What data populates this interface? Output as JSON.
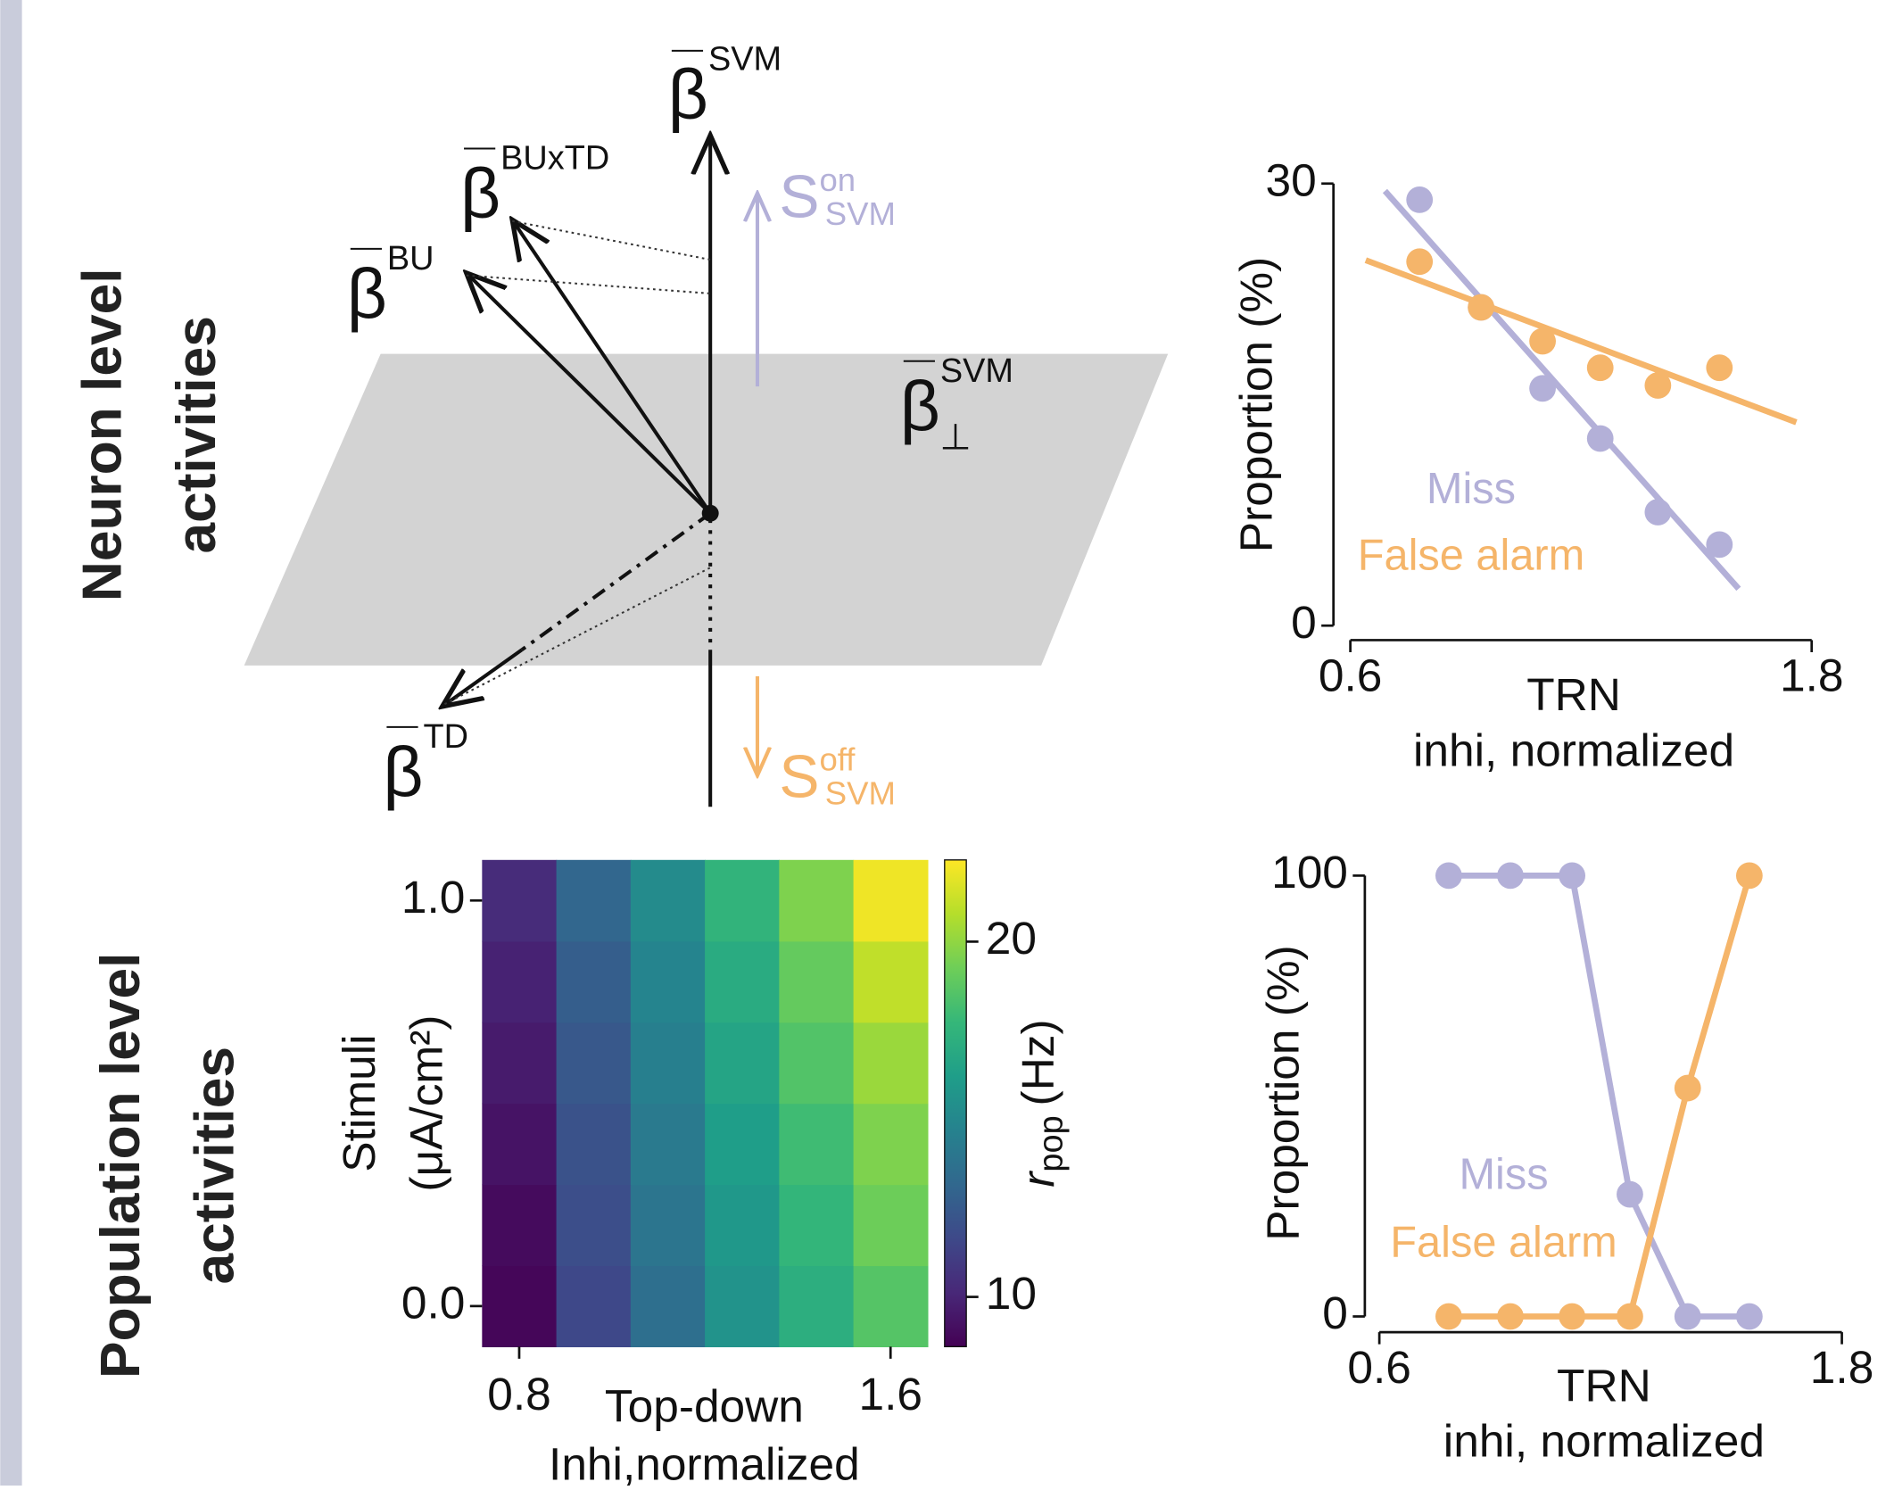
{
  "row_labels": [
    [
      "Neuron level",
      "activities"
    ],
    [
      "Population level",
      "activities"
    ]
  ],
  "diagram": {
    "vectors": [
      {
        "symbol": "β",
        "sup": "SVM"
      },
      {
        "symbol": "β",
        "sup": "BUxTD"
      },
      {
        "symbol": "β",
        "sup": "BU"
      },
      {
        "symbol": "β",
        "sup": "TD"
      },
      {
        "symbol": "β",
        "sup": "SVM",
        "sub": "⊥"
      }
    ],
    "states": [
      {
        "symbol": "S",
        "sup": "on",
        "sub": "SVM",
        "color": "#b3b0d8"
      },
      {
        "symbol": "S",
        "sup": "off",
        "sub": "SVM",
        "color": "#f5b56a"
      }
    ]
  },
  "chart_data": [
    {
      "type": "scatter",
      "ylabel": "Proportion (%)",
      "xlabel": [
        "TRN",
        "inhi, normalized"
      ],
      "xlim": [
        0.6,
        1.8
      ],
      "xticks": [
        0.6,
        1.8
      ],
      "ylim": [
        0,
        30
      ],
      "yticks": [
        0,
        30
      ],
      "series": [
        {
          "name": "Miss",
          "color": "#b3b0d8",
          "x": [
            0.78,
            0.94,
            1.1,
            1.25,
            1.4,
            1.56
          ],
          "values": [
            28.9,
            21.6,
            16.1,
            12.7,
            7.7,
            5.5
          ],
          "fit": {
            "x": [
              0.69,
              1.61
            ],
            "values": [
              29.5,
              2.5
            ]
          }
        },
        {
          "name": "False alarm",
          "color": "#f5b56a",
          "x": [
            0.78,
            0.94,
            1.1,
            1.25,
            1.4,
            1.56
          ],
          "values": [
            24.7,
            21.6,
            19.3,
            17.5,
            16.3,
            17.5
          ],
          "fit": {
            "x": [
              0.64,
              1.76
            ],
            "values": [
              24.8,
              13.8
            ]
          }
        }
      ]
    },
    {
      "type": "heatmap",
      "ylabel": [
        "Stimuli",
        "(μA/cm²)"
      ],
      "xlabel": [
        "Top-down",
        "Inhi,normalized"
      ],
      "x": [
        0.8,
        0.96,
        1.12,
        1.28,
        1.44,
        1.6
      ],
      "y": [
        0.0,
        0.2,
        0.4,
        0.6,
        0.8,
        1.0
      ],
      "z": [
        [
          8.8,
          11.6,
          13.6,
          15.6,
          17.2,
          18.6
        ],
        [
          9.0,
          11.9,
          13.9,
          15.9,
          17.6,
          19.2
        ],
        [
          9.3,
          12.1,
          14.2,
          16.2,
          18.0,
          19.6
        ],
        [
          9.6,
          12.4,
          14.5,
          16.6,
          18.5,
          20.2
        ],
        [
          9.9,
          12.7,
          14.8,
          17.0,
          19.0,
          21.0
        ],
        [
          10.3,
          13.1,
          15.2,
          17.5,
          19.6,
          22.0
        ]
      ],
      "xlim": [
        0.72,
        1.68
      ],
      "xticks": [
        0.8,
        1.6
      ],
      "ylim": [
        -0.1,
        1.1
      ],
      "yticks": [
        {
          "value": 0,
          "label": "0.0"
        },
        {
          "value": 1,
          "label": "1.0"
        }
      ],
      "colormap": "viridis",
      "clim": [
        8.6,
        22.3
      ],
      "cticks": [
        10,
        20
      ],
      "colorbar_label": {
        "symbol": "r",
        "sub": "pop",
        "unit": "(Hz)"
      }
    },
    {
      "type": "line",
      "ylabel": "Proportion (%)",
      "xlabel": [
        "TRN",
        "inhi, normalized"
      ],
      "xlim": [
        0.6,
        1.8
      ],
      "xticks": [
        0.6,
        1.8
      ],
      "ylim": [
        0,
        100
      ],
      "yticks": [
        0,
        100
      ],
      "series": [
        {
          "name": "Miss",
          "color": "#b3b0d8",
          "x": [
            0.78,
            0.94,
            1.1,
            1.25,
            1.4,
            1.56
          ],
          "values": [
            100,
            100,
            100,
            27.7,
            0,
            0
          ]
        },
        {
          "name": "False alarm",
          "color": "#f5b56a",
          "x": [
            0.78,
            0.94,
            1.1,
            1.25,
            1.4,
            1.56
          ],
          "values": [
            0,
            0,
            0,
            0,
            51.8,
            100
          ]
        }
      ]
    }
  ]
}
